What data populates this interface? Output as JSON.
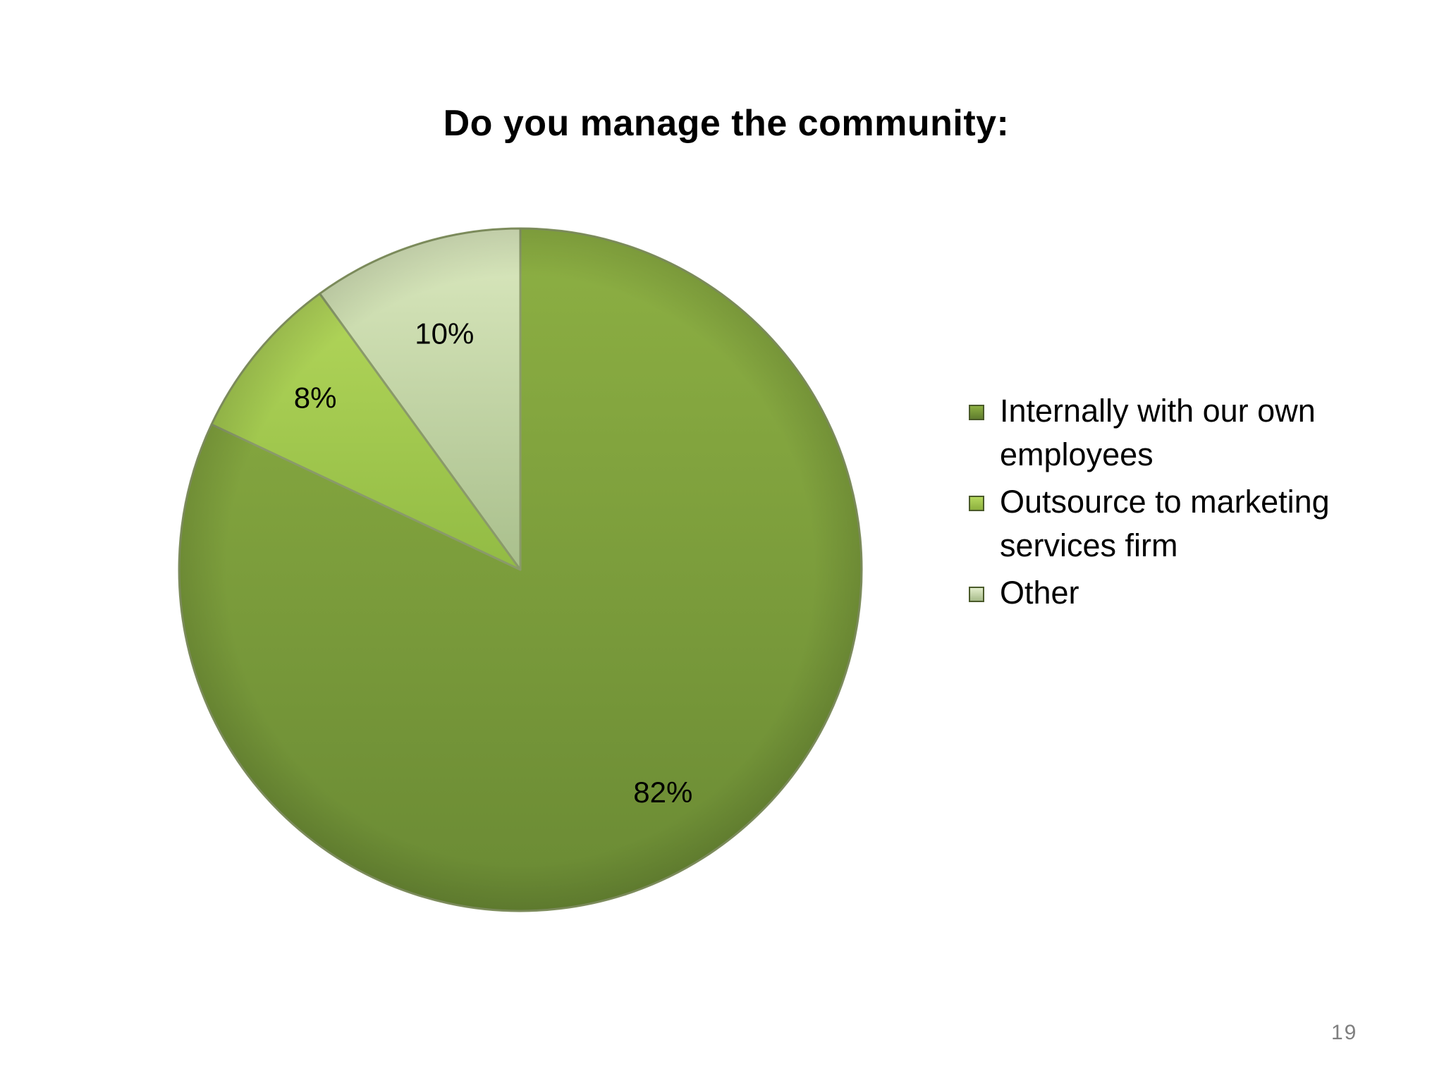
{
  "slide": {
    "page_number": "19"
  },
  "chart_data": {
    "type": "pie",
    "title": "Do you manage the community:",
    "categories": [
      "Internally with our own employees",
      "Outsource to marketing services firm",
      "Other"
    ],
    "values": [
      82,
      8,
      10
    ],
    "data_labels": [
      "82%",
      "8%",
      "10%"
    ],
    "colors": [
      "#7a9c3c",
      "#9cc34a",
      "#c4d9a0"
    ],
    "legend_position": "right"
  }
}
